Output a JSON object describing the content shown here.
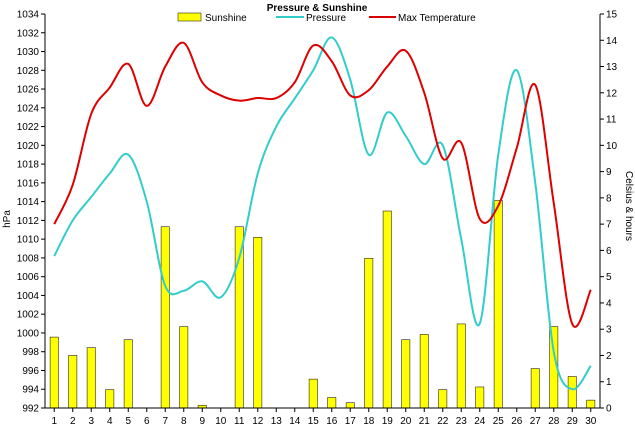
{
  "chart_data": {
    "type": "bar+line",
    "title": "Pressure & Sunshine",
    "ylabel_left": "hPa",
    "ylabel_right": "Celsius & hours",
    "ylim_left": [
      992,
      1034
    ],
    "ylim_right": [
      0,
      15
    ],
    "yticks_left": [
      "992",
      "994",
      "996",
      "998",
      "1000",
      "1002",
      "1004",
      "1006",
      "1008",
      "1010",
      "1012",
      "1014",
      "1016",
      "1018",
      "1020",
      "1022",
      "1024",
      "1026",
      "1028",
      "1030",
      "1032",
      "1034"
    ],
    "yticks_right": [
      "0",
      "1",
      "2",
      "3",
      "4",
      "5",
      "6",
      "7",
      "8",
      "9",
      "10",
      "11",
      "12",
      "13",
      "14",
      "15"
    ],
    "categories": [
      "1",
      "2",
      "3",
      "4",
      "5",
      "6",
      "7",
      "8",
      "9",
      "10",
      "11",
      "12",
      "13",
      "14",
      "15",
      "16",
      "17",
      "18",
      "19",
      "20",
      "21",
      "22",
      "23",
      "24",
      "25",
      "26",
      "27",
      "28",
      "29",
      "30"
    ],
    "legend": {
      "placement": "top",
      "items": [
        {
          "label": "Sunshine",
          "kind": "bar",
          "color": "#FFFF00"
        },
        {
          "label": "Pressure",
          "kind": "line",
          "color": "#33CCCC"
        },
        {
          "label": "Max Temperature",
          "kind": "line",
          "color": "#DD0000"
        }
      ]
    },
    "series": [
      {
        "name": "Sunshine",
        "axis": "right",
        "type": "bar",
        "color": "#FFFF00",
        "values": [
          2.7,
          2.0,
          2.3,
          0.7,
          2.6,
          0,
          6.9,
          3.1,
          0.1,
          0,
          6.9,
          6.5,
          0,
          0,
          1.1,
          0.4,
          0.2,
          5.7,
          7.5,
          2.6,
          2.8,
          0.7,
          3.2,
          0.8,
          7.9,
          0,
          1.5,
          3.1,
          1.2,
          0.3
        ]
      },
      {
        "name": "Pressure",
        "axis": "left",
        "type": "line",
        "color": "#33CCCC",
        "values": [
          1008.2,
          1012.0,
          1014.5,
          1017.0,
          1019.0,
          1014.0,
          1005.0,
          1004.5,
          1005.5,
          1003.8,
          1008.0,
          1017.0,
          1022.0,
          1025.0,
          1028.0,
          1031.5,
          1027.0,
          1019.0,
          1023.5,
          1021.0,
          1018.0,
          1020.0,
          1010.0,
          1001.0,
          1019.0,
          1028.0,
          1016.0,
          998.0,
          994.0,
          996.5
        ]
      },
      {
        "name": "Max Temperature",
        "axis": "right",
        "type": "line",
        "color": "#DD0000",
        "values": [
          7.0,
          8.5,
          11.2,
          12.2,
          13.1,
          11.5,
          13.0,
          13.9,
          12.4,
          11.9,
          11.7,
          11.8,
          11.8,
          12.4,
          13.8,
          13.2,
          11.9,
          12.1,
          13.0,
          13.6,
          12.0,
          9.5,
          10.1,
          7.2,
          7.7,
          9.9,
          12.3,
          7.8,
          3.2,
          4.5
        ]
      }
    ]
  }
}
